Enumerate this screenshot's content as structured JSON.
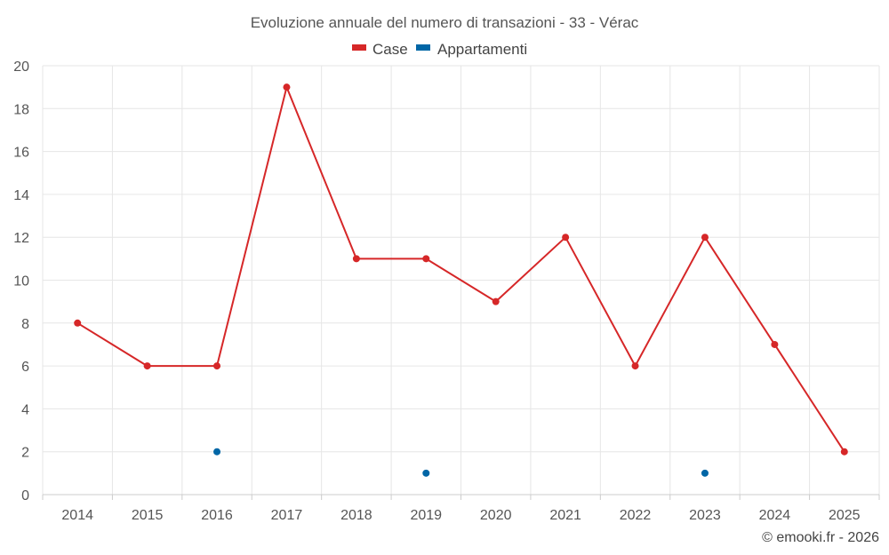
{
  "chart_data": {
    "type": "line",
    "title": "Evoluzione annuale del numero di transazioni - 33 - Vérac",
    "categories": [
      "2014",
      "2015",
      "2016",
      "2017",
      "2018",
      "2019",
      "2020",
      "2021",
      "2022",
      "2023",
      "2024",
      "2025"
    ],
    "series": [
      {
        "name": "Case",
        "color": "#d62728",
        "values": [
          8,
          6,
          6,
          19,
          11,
          11,
          9,
          12,
          6,
          12,
          7,
          2
        ]
      },
      {
        "name": "Appartamenti",
        "color": "#0066a6",
        "values": [
          null,
          null,
          2,
          null,
          null,
          1,
          null,
          null,
          null,
          1,
          null,
          null
        ]
      }
    ],
    "ylim": [
      0,
      20
    ],
    "yticks": [
      0,
      2,
      4,
      6,
      8,
      10,
      12,
      14,
      16,
      18,
      20
    ],
    "ytick_labels": [
      "0",
      "2",
      "4",
      "6",
      "8",
      "10",
      "12",
      "14",
      "16",
      "18",
      "20"
    ],
    "legend_position": "top-center",
    "grid": true,
    "credit": "© emooki.fr - 2026"
  }
}
